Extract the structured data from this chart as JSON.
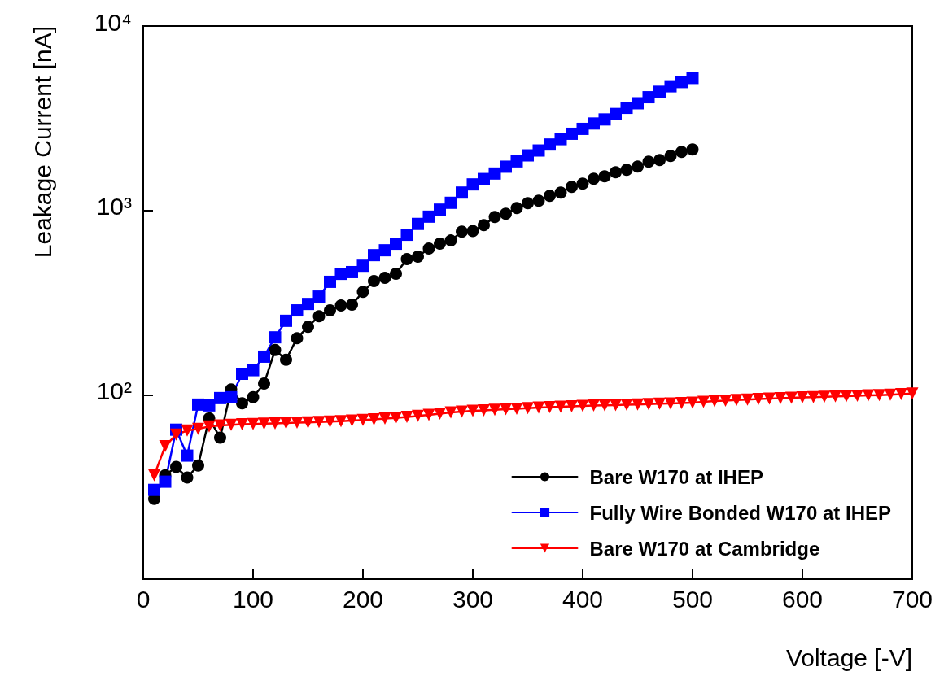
{
  "chart_data": {
    "type": "line",
    "xlabel": "Voltage [-V]",
    "ylabel": "Leakage Current [nA]",
    "x": [
      10,
      20,
      30,
      40,
      50,
      60,
      70,
      80,
      90,
      100,
      110,
      120,
      130,
      140,
      150,
      160,
      170,
      180,
      190,
      200,
      210,
      220,
      230,
      240,
      250,
      260,
      270,
      280,
      290,
      300,
      310,
      320,
      330,
      340,
      350,
      360,
      370,
      380,
      390,
      400,
      410,
      420,
      430,
      440,
      450,
      460,
      470,
      480,
      490,
      500
    ],
    "series": [
      {
        "name": "Bare W170 at IHEP",
        "color": "#000000",
        "marker": "circle",
        "values": [
          27.3,
          36.6,
          40.6,
          35.6,
          41.4,
          74.5,
          58.5,
          107,
          90,
          97,
          115,
          175,
          155,
          203,
          234,
          267,
          287,
          305,
          308,
          362,
          414,
          431,
          453,
          544,
          561,
          621,
          660,
          687,
          767,
          773,
          833,
          922,
          959,
          1031,
          1096,
          1130,
          1200,
          1250,
          1342,
          1397,
          1485,
          1532,
          1611,
          1660,
          1728,
          1838,
          1875,
          1972,
          2075,
          2140
        ]
      },
      {
        "name": "Fully Wire Bonded W170 at IHEP",
        "color": "#0000ff",
        "marker": "square",
        "values": [
          30.5,
          33.8,
          64.7,
          46.8,
          88.5,
          87.6,
          96,
          97,
          130,
          136,
          161,
          205,
          252,
          287,
          311,
          341,
          410,
          453,
          463,
          501,
          572,
          608,
          660,
          738,
          845,
          925,
          1010,
          1100,
          1250,
          1384,
          1480,
          1585,
          1726,
          1845,
          1988,
          2113,
          2277,
          2434,
          2604,
          2768,
          2960,
          3114,
          3333,
          3600,
          3810,
          4109,
          4399,
          4710,
          4966,
          5224
        ]
      },
      {
        "name": "Bare W170 at Cambridge",
        "color": "#ff0000",
        "marker": "triangle",
        "x": [
          10,
          20,
          30,
          40,
          50,
          60,
          70,
          80,
          90,
          100,
          110,
          120,
          130,
          140,
          150,
          160,
          170,
          180,
          190,
          200,
          210,
          220,
          230,
          240,
          250,
          260,
          270,
          280,
          290,
          300,
          310,
          320,
          330,
          340,
          350,
          360,
          370,
          380,
          390,
          400,
          410,
          420,
          430,
          440,
          450,
          460,
          470,
          480,
          490,
          500,
          510,
          520,
          530,
          540,
          550,
          560,
          570,
          580,
          590,
          600,
          610,
          620,
          630,
          640,
          650,
          660,
          670,
          680,
          690,
          700
        ],
        "values": [
          36.6,
          52.7,
          60.8,
          64,
          65.3,
          67.3,
          68.2,
          68.8,
          69.2,
          69.5,
          69.8,
          70,
          70.3,
          70.6,
          70.8,
          71.2,
          71.6,
          72,
          72.5,
          73,
          73.6,
          74.3,
          75,
          75.8,
          76.8,
          77.8,
          79,
          80.2,
          81,
          81.8,
          82.4,
          83,
          83.6,
          84.1,
          84.6,
          85.2,
          85.7,
          86.2,
          86.7,
          87.1,
          87.4,
          87.7,
          88,
          88.3,
          88.6,
          89,
          89.4,
          89.8,
          90.2,
          90.6,
          91.5,
          92.4,
          93,
          93.6,
          94.2,
          94.8,
          95.3,
          95.8,
          96.3,
          96.8,
          97.2,
          97.6,
          98,
          98.4,
          98.8,
          99.2,
          99.6,
          100.2,
          100.8,
          101.5
        ]
      }
    ],
    "xlim": [
      0,
      700
    ],
    "xticks": [
      0,
      100,
      200,
      300,
      400,
      500,
      600,
      700
    ],
    "ylim": [
      10,
      10000
    ],
    "log": "y",
    "yticks": [
      {
        "value": 100,
        "label": "10²"
      },
      {
        "value": 1000,
        "label": "10³"
      },
      {
        "value": 10000,
        "label": "10⁴"
      }
    ],
    "line_style": "solid",
    "grid": false,
    "legend": "bottom right"
  }
}
